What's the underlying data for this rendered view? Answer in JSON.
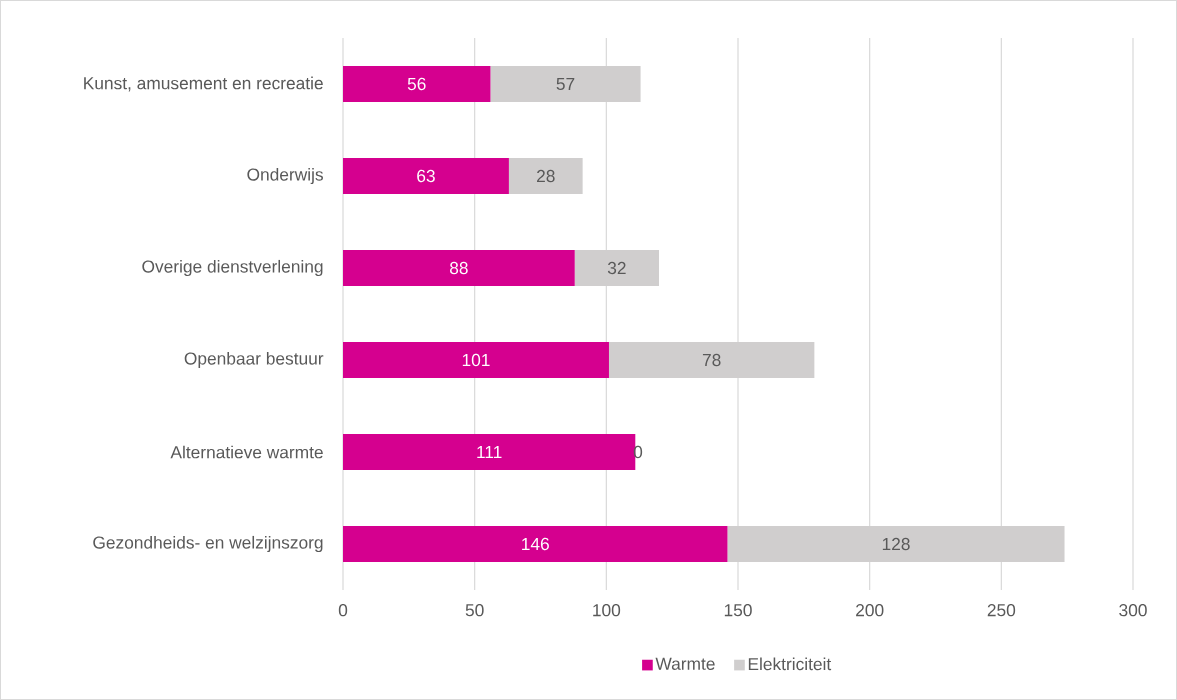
{
  "chart_data": {
    "type": "bar",
    "orientation": "horizontal",
    "stacked": true,
    "categories": [
      "Kunst, amusement en recreatie",
      "Onderwijs",
      "Overige dienstverlening",
      "Openbaar bestuur",
      "Alternatieve warmte",
      "Gezondheids- en welzijnszorg"
    ],
    "series": [
      {
        "name": "Warmte",
        "color": "#d5008f",
        "values": [
          56,
          63,
          88,
          101,
          111,
          146
        ]
      },
      {
        "name": "Elektriciteit",
        "color": "#d0cece",
        "values": [
          57,
          28,
          32,
          78,
          0,
          128
        ]
      }
    ],
    "xlim": [
      0,
      300
    ],
    "xticks": [
      0,
      50,
      100,
      150,
      200,
      250,
      300
    ],
    "grid": "x",
    "legend": "bottom",
    "data_labels": true
  }
}
